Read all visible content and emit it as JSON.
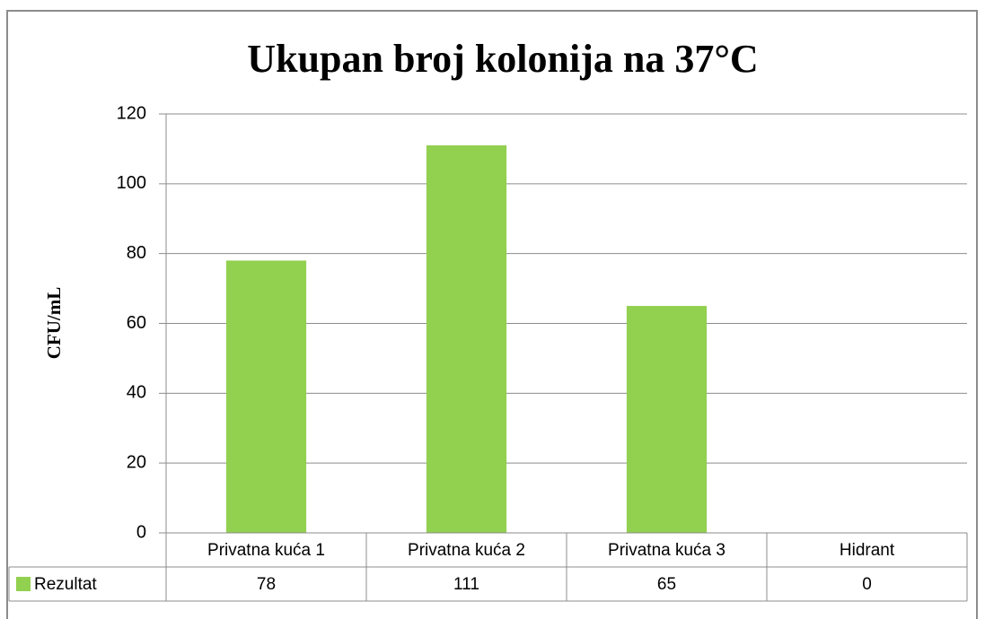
{
  "chart_data": {
    "type": "bar",
    "title": "Ukupan broj kolonija na 37°C",
    "y_label": "CFU/mL",
    "categories": [
      "Privatna kuća 1",
      "Privatna kuća 2",
      "Privatna kuća 3",
      "Hidrant"
    ],
    "series": [
      {
        "name": "Rezultat",
        "color": "#92d050",
        "values": [
          78,
          111,
          65,
          0
        ]
      }
    ],
    "ylim": [
      0,
      120
    ],
    "yticks": [
      0,
      20,
      40,
      60,
      80,
      100,
      120
    ],
    "grid": true,
    "data_table": true
  }
}
